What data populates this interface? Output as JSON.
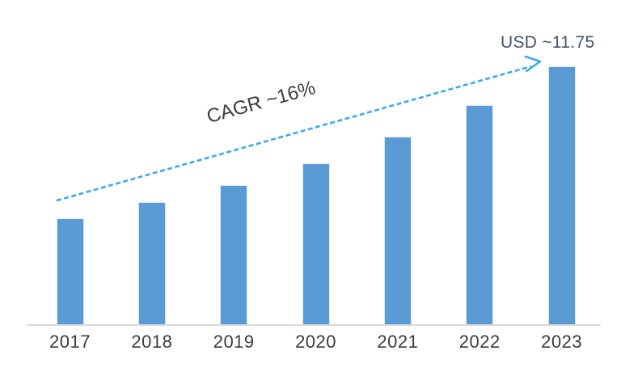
{
  "chart_data": {
    "type": "bar",
    "title": "",
    "xlabel": "",
    "ylabel": "",
    "categories": [
      "2017",
      "2018",
      "2019",
      "2020",
      "2021",
      "2022",
      "2023"
    ],
    "values": [
      4.83,
      5.56,
      6.34,
      7.33,
      8.55,
      9.98,
      11.75
    ],
    "ylim": [
      0,
      11.75
    ],
    "grid": false,
    "legend": "none",
    "bar_color": "#5B9BD5",
    "axis_line_color": "#D9D9D9",
    "tick_label_color": "#3C3C3C",
    "annotations": {
      "cagr_label": "CAGR ~16%",
      "cagr_label_color": "#3C3C3C",
      "end_value_label": "USD ~11.75",
      "end_value_label_color": "#44546A",
      "arrow_color": "#3FA9E8",
      "arrow_style": "dashed",
      "arrow_from_category": "2017",
      "arrow_to_category": "2023"
    }
  }
}
